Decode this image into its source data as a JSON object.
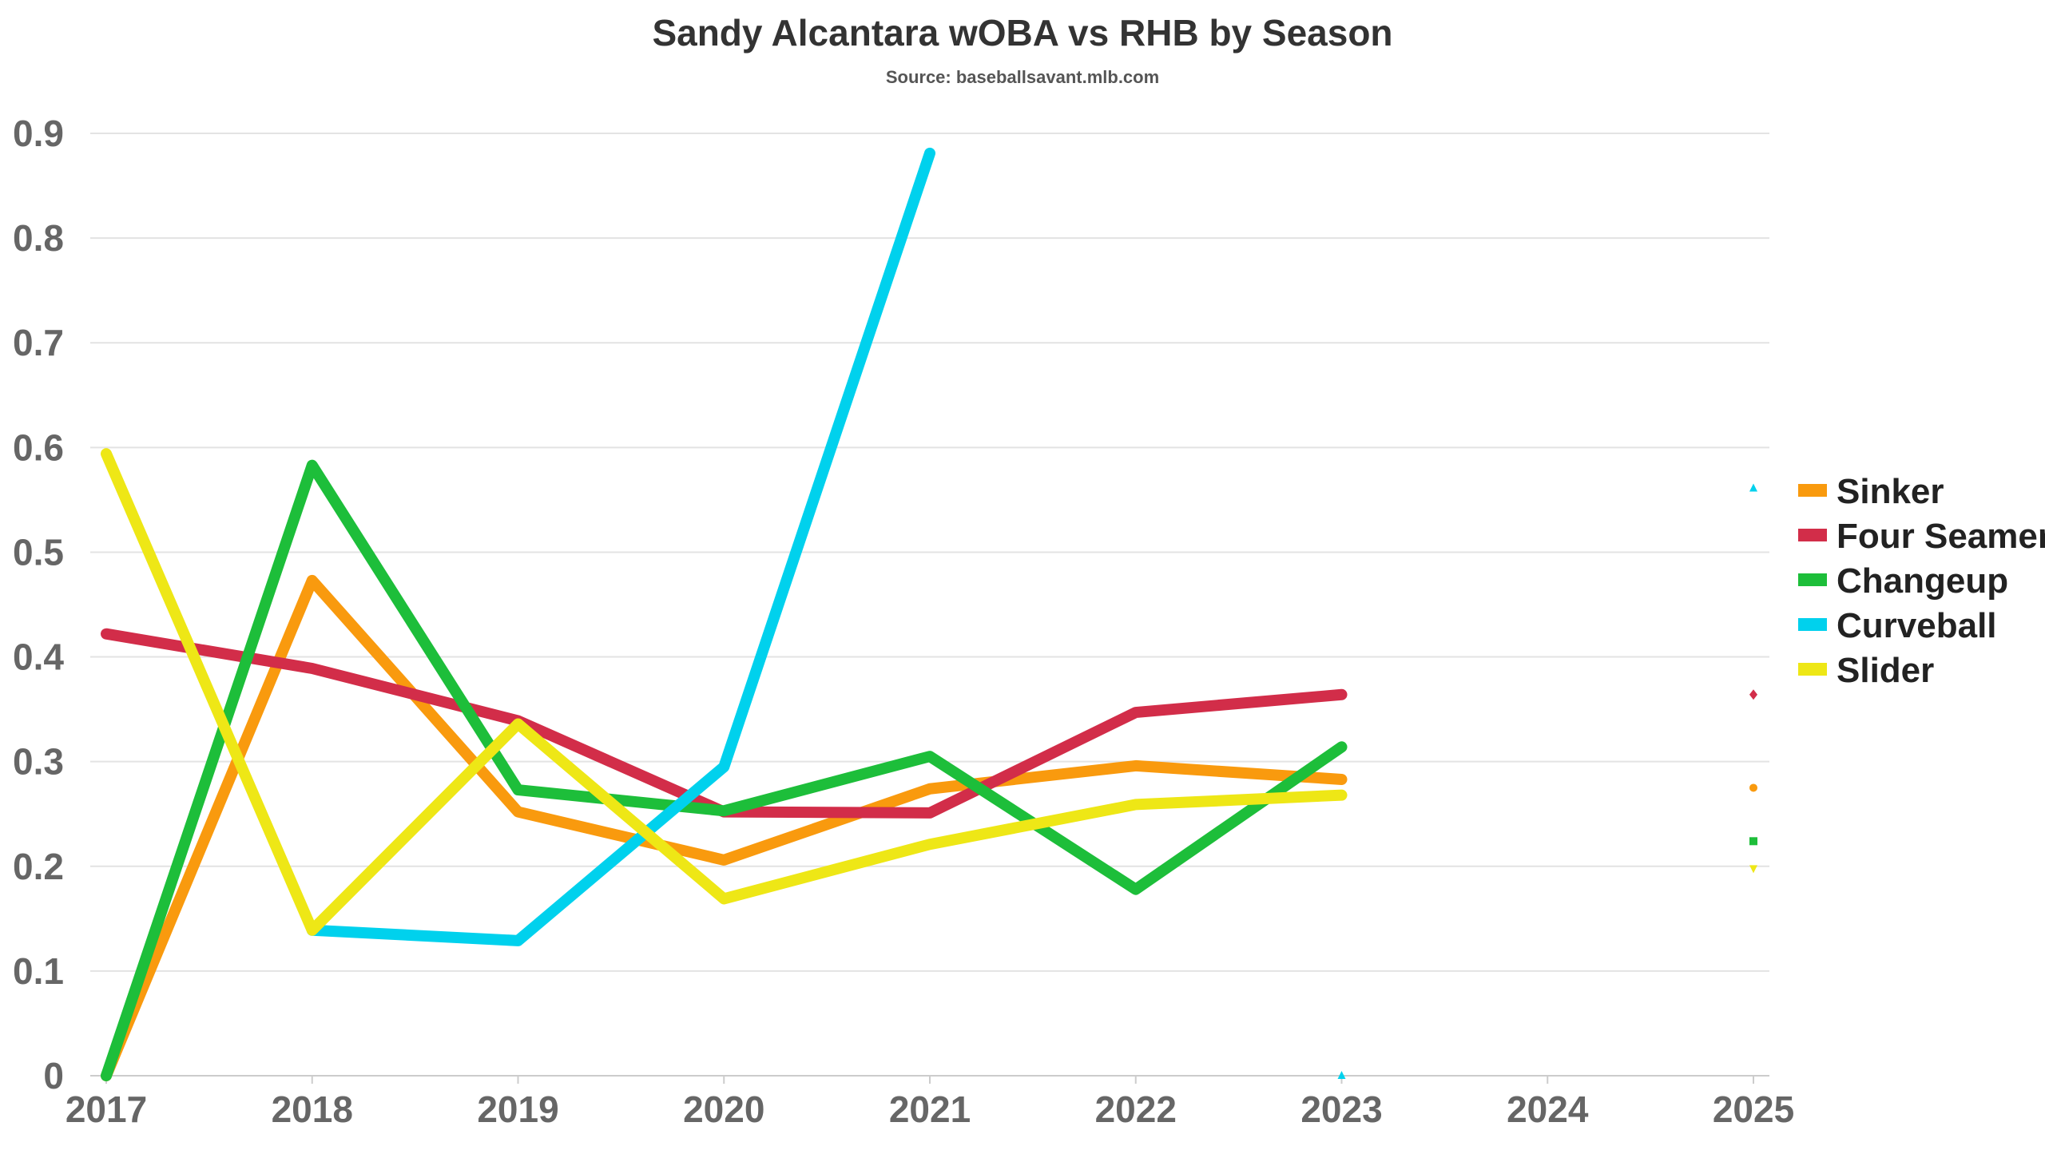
{
  "title": "Sandy Alcantara wOBA vs RHB by Season",
  "subtitle": "Source: baseballsavant.mlb.com",
  "chart_data": {
    "type": "line",
    "x": [
      2017,
      2018,
      2019,
      2020,
      2021,
      2022,
      2023,
      2024,
      2025
    ],
    "xlim": [
      2017,
      2025
    ],
    "ylim": [
      0,
      0.9
    ],
    "y_ticks": [
      0,
      0.1,
      0.2,
      0.3,
      0.4,
      0.5,
      0.6,
      0.7,
      0.8,
      0.9
    ],
    "y_tick_labels": [
      "0",
      "0.1",
      "0.2",
      "0.3",
      "0.4",
      "0.5",
      "0.6",
      "0.7",
      "0.8",
      "0.9"
    ],
    "x_tick_labels": [
      "2017",
      "2018",
      "2019",
      "2020",
      "2021",
      "2022",
      "2023",
      "2024",
      "2025"
    ],
    "grid": "horizontal",
    "legend_position": "right",
    "series": [
      {
        "name": "Sinker",
        "color": "#F99A0E",
        "marker": "circle",
        "x": [
          2017,
          2018,
          2019,
          2020,
          2021,
          2022,
          2023
        ],
        "values": [
          0.0,
          0.473,
          0.252,
          0.206,
          0.274,
          0.296,
          0.283
        ],
        "point_2025": 0.275
      },
      {
        "name": "Four Seamer",
        "color": "#D22D49",
        "marker": "diamond",
        "x": [
          2017,
          2018,
          2019,
          2020,
          2021,
          2022,
          2023
        ],
        "values": [
          0.422,
          0.389,
          0.339,
          0.252,
          0.251,
          0.347,
          0.364
        ],
        "point_2025": 0.364
      },
      {
        "name": "Changeup",
        "color": "#1DBE3A",
        "marker": "square",
        "x": [
          2017,
          2018,
          2019,
          2020,
          2021,
          2022,
          2023
        ],
        "values": [
          0.0,
          0.583,
          0.273,
          0.253,
          0.305,
          0.178,
          0.314
        ],
        "point_2025": 0.224
      },
      {
        "name": "Curveball",
        "color": "#00D1ED",
        "marker": "triangle",
        "x": [
          2018,
          2019,
          2020,
          2021
        ],
        "values": [
          0.139,
          0.129,
          0.295,
          0.881
        ],
        "point_2023": 0.0,
        "point_2025": 0.561
      },
      {
        "name": "Slider",
        "color": "#EEE716",
        "marker": "triangle-down",
        "x": [
          2017,
          2018,
          2019,
          2020,
          2021,
          2022,
          2023
        ],
        "values": [
          0.594,
          0.139,
          0.336,
          0.169,
          0.221,
          0.259,
          0.268
        ],
        "point_2025": 0.198
      }
    ]
  }
}
